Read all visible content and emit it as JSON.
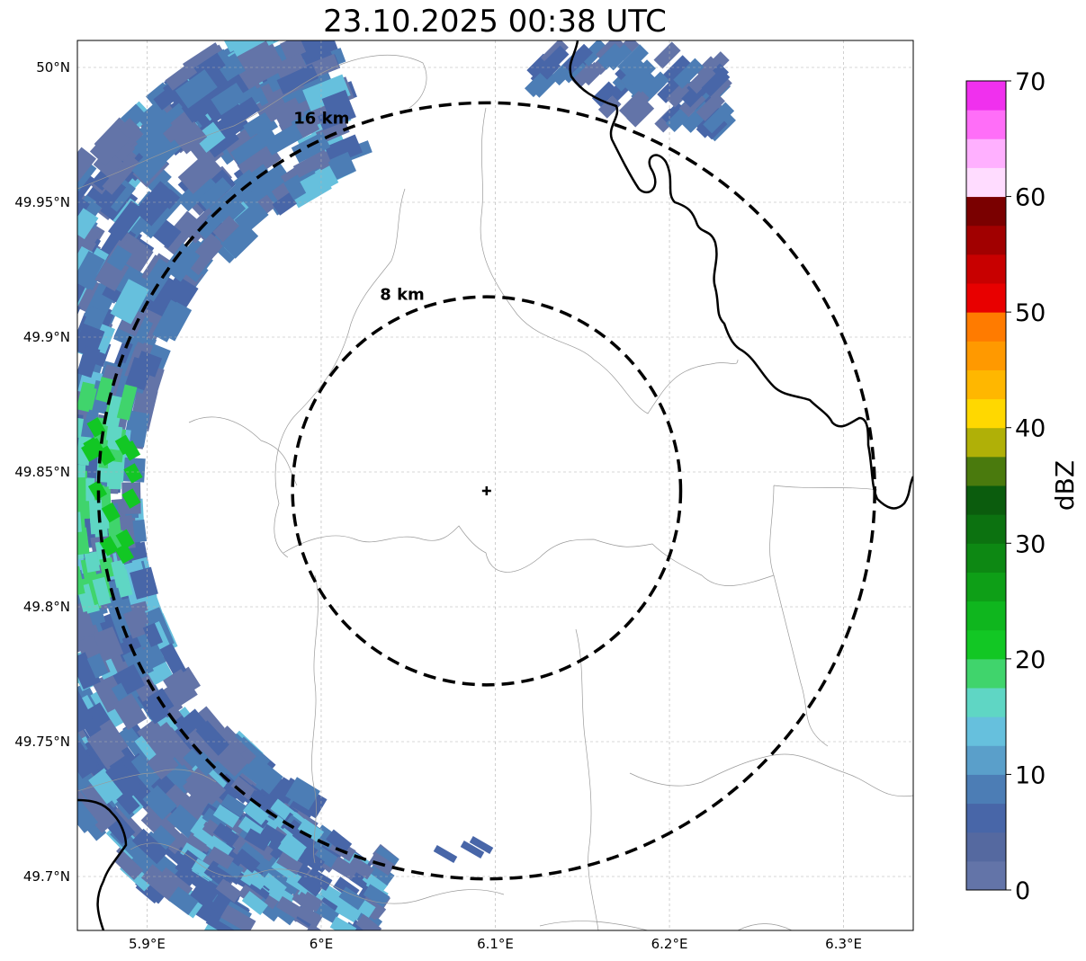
{
  "title": "23.10.2025 00:38 UTC",
  "map": {
    "lon_range": [
      5.86,
      6.34
    ],
    "lat_range": [
      49.68,
      50.01
    ],
    "radar_site": {
      "lon": 6.095,
      "lat": 49.843
    },
    "lon_ticks": [
      {
        "value": 5.9,
        "label": "5.9°E"
      },
      {
        "value": 6.0,
        "label": "6°E"
      },
      {
        "value": 6.1,
        "label": "6.1°E"
      },
      {
        "value": 6.2,
        "label": "6.2°E"
      },
      {
        "value": 6.3,
        "label": "6.3°E"
      }
    ],
    "lat_ticks": [
      {
        "value": 50.0,
        "label": "50°N"
      },
      {
        "value": 49.95,
        "label": "49.95°N"
      },
      {
        "value": 49.9,
        "label": "49.9°N"
      },
      {
        "value": 49.85,
        "label": "49.85°N"
      },
      {
        "value": 49.8,
        "label": "49.8°N"
      },
      {
        "value": 49.75,
        "label": "49.75°N"
      },
      {
        "value": 49.7,
        "label": "49.7°N"
      }
    ],
    "grid": true,
    "range_rings": [
      {
        "radius_km": 8,
        "label": "8 km"
      },
      {
        "radius_km": 16,
        "label": "16 km"
      }
    ]
  },
  "colorbar": {
    "label": "dBZ",
    "min": 0,
    "max": 70,
    "step": 2.5,
    "tick_labels": [
      "0",
      "10",
      "20",
      "30",
      "40",
      "50",
      "60",
      "70"
    ],
    "colors": [
      "#6374a8",
      "#5569a0",
      "#4866a8",
      "#4c7db5",
      "#5a9fca",
      "#66c0dd",
      "#5fd6c4",
      "#40d46c",
      "#12c724",
      "#0fb61e",
      "#0e9f17",
      "#0d8813",
      "#0c7210",
      "#0b5c0d",
      "#4a7a0d",
      "#b0b007",
      "#ffd800",
      "#ffb700",
      "#ff9900",
      "#ff7b00",
      "#e80000",
      "#c80000",
      "#a10000",
      "#7a0000",
      "#ffdcff",
      "#ffb0ff",
      "#ff6ef8",
      "#f030ee"
    ]
  },
  "colors": {
    "echo_dark": "#4866a8",
    "echo_mid": "#4c7db5",
    "echo_blue": "#6374a8",
    "echo_light": "#66c0dd",
    "echo_cyan": "#5fd6c4",
    "echo_green": "#40d46c",
    "echo_bright_green": "#12c724",
    "ring_color": "#000000",
    "border_color": "#000000",
    "boundary_color": "#9a9a9a"
  }
}
